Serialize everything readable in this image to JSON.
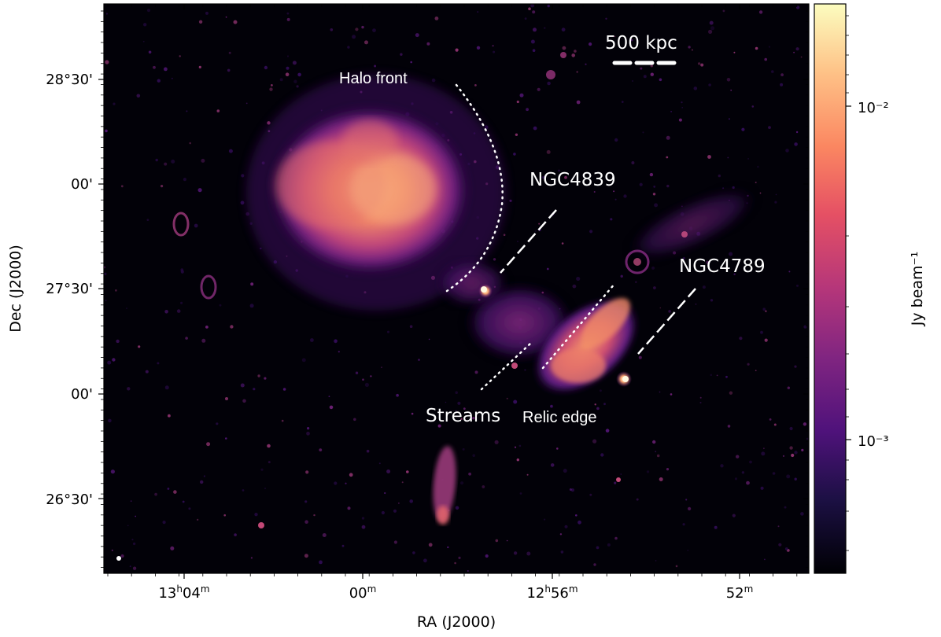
{
  "figure": {
    "xlabel": "RA (J2000)",
    "ylabel": "Dec (J2000)",
    "colorbar_label": "Jy beam⁻¹",
    "colormap": "magma",
    "colorbar_ticks": [
      "10⁻²",
      "10⁻³"
    ],
    "ra_ticks": [
      {
        "hours": "13",
        "minutes": "04"
      },
      {
        "hours": "",
        "minutes": "00"
      },
      {
        "hours": "12",
        "minutes": "56"
      },
      {
        "hours": "",
        "minutes": "52"
      }
    ],
    "dec_ticks": [
      "28°30'",
      "00'",
      "27°30'",
      "00'",
      "26°30'"
    ],
    "scale_bar": "500 kpc",
    "annotations": {
      "halo_front": "Halo front",
      "ngc4839": "NGC4839",
      "ngc4789": "NGC4789",
      "streams": "Streams",
      "relic_edge": "Relic edge"
    }
  }
}
